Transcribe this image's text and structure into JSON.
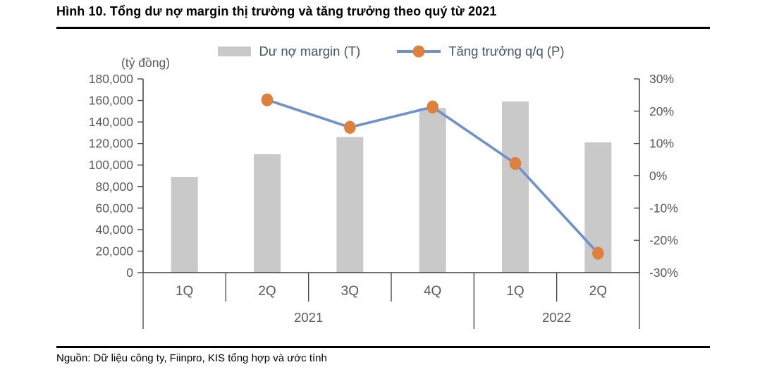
{
  "header": {
    "title": "Hình 10. Tổng dư nợ margin thị trường và tăng trưởng theo quý từ 2021"
  },
  "legend": {
    "items": [
      {
        "label": "Dư nợ margin (T)",
        "swatch": "gray-bar"
      },
      {
        "label": "Tăng trưởng q/q (P)",
        "swatch": "blue-line-orange-dot"
      }
    ]
  },
  "chart_data": {
    "type": "bar+line",
    "title": "Tổng dư nợ margin thị trường và tăng trưởng theo quý từ 2021",
    "left_axis": {
      "label": "(tỷ đồng)",
      "min": 0,
      "max": 180000,
      "step": 20000,
      "ticks": [
        "180,000",
        "160,000",
        "140,000",
        "120,000",
        "100,000",
        "80,000",
        "60,000",
        "40,000",
        "20,000",
        "0"
      ]
    },
    "right_axis": {
      "min": -30,
      "max": 30,
      "step": 10,
      "ticks": [
        "30%",
        "20%",
        "10%",
        "0%",
        "-10%",
        "-20%",
        "-30%"
      ]
    },
    "categories": [
      "1Q",
      "2Q",
      "3Q",
      "4Q",
      "1Q",
      "2Q"
    ],
    "year_groups": [
      {
        "label": "2021",
        "span": 4
      },
      {
        "label": "2022",
        "span": 2
      }
    ],
    "series": [
      {
        "name": "Dư nợ margin (T)",
        "type": "bar",
        "axis": "left",
        "color": "#C9C9C9",
        "values": [
          89000,
          110000,
          126000,
          153000,
          159000,
          121000
        ]
      },
      {
        "name": "Tăng trưởng q/q (P)",
        "type": "line",
        "axis": "right",
        "color": "#6D92CE",
        "marker_color": "#E0813B",
        "values": [
          null,
          23.5,
          15,
          21.3,
          3.8,
          -24
        ]
      }
    ],
    "grid": false,
    "legend_position": "top"
  },
  "footer": {
    "source": "Nguồn: Dữ liệu công ty, Fiinpro, KIS tổng hợp và ước tính"
  },
  "colors": {
    "title": "#000000",
    "axis_text": "#595959",
    "legend_text": "#44546A",
    "axis_line": "#404040",
    "rule": "#000000"
  }
}
